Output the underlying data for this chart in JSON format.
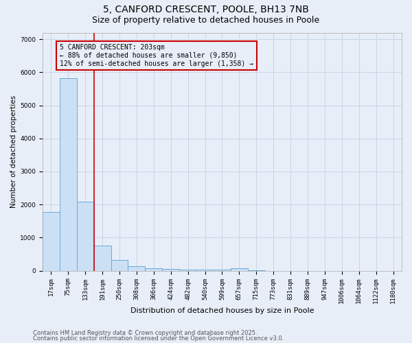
{
  "title1": "5, CANFORD CRESCENT, POOLE, BH13 7NB",
  "title2": "Size of property relative to detached houses in Poole",
  "xlabel": "Distribution of detached houses by size in Poole",
  "ylabel": "Number of detached properties",
  "bar_labels": [
    "17sqm",
    "75sqm",
    "133sqm",
    "191sqm",
    "250sqm",
    "308sqm",
    "366sqm",
    "424sqm",
    "482sqm",
    "540sqm",
    "599sqm",
    "657sqm",
    "715sqm",
    "773sqm",
    "831sqm",
    "889sqm",
    "947sqm",
    "1006sqm",
    "1064sqm",
    "1122sqm",
    "1180sqm"
  ],
  "bar_values": [
    1780,
    5820,
    2080,
    750,
    330,
    130,
    75,
    55,
    40,
    30,
    25,
    65,
    20,
    0,
    0,
    0,
    0,
    0,
    0,
    0,
    0
  ],
  "bar_color": "#cce0f5",
  "bar_edge_color": "#6aaad4",
  "red_line_index": 3,
  "annotation_text": "5 CANFORD CRESCENT: 203sqm\n← 88% of detached houses are smaller (9,850)\n12% of semi-detached houses are larger (1,358) →",
  "annotation_box_color": "#cc0000",
  "ylim": [
    0,
    7200
  ],
  "yticks": [
    0,
    1000,
    2000,
    3000,
    4000,
    5000,
    6000,
    7000
  ],
  "grid_color": "#c8d4e8",
  "bg_color": "#e8eef8",
  "footer1": "Contains HM Land Registry data © Crown copyright and database right 2025.",
  "footer2": "Contains public sector information licensed under the Open Government Licence v3.0.",
  "title_fontsize": 10,
  "subtitle_fontsize": 9,
  "annot_fontsize": 7,
  "tick_fontsize": 6.5,
  "ylabel_fontsize": 7.5,
  "xlabel_fontsize": 8
}
